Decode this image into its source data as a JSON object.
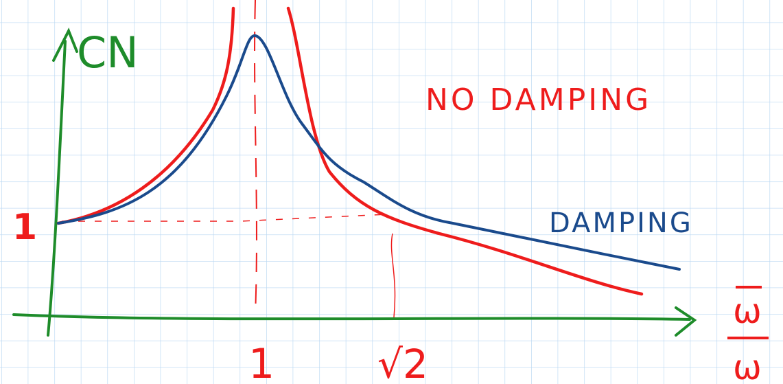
{
  "axes": {
    "y_label": "CN",
    "y_tick": "1",
    "x_ticks": [
      "1",
      "√2"
    ],
    "x_label_numerator": "ω",
    "x_label_denominator": "ω"
  },
  "annotations": [
    "NO DAMPING",
    "DAMPING"
  ]
}
